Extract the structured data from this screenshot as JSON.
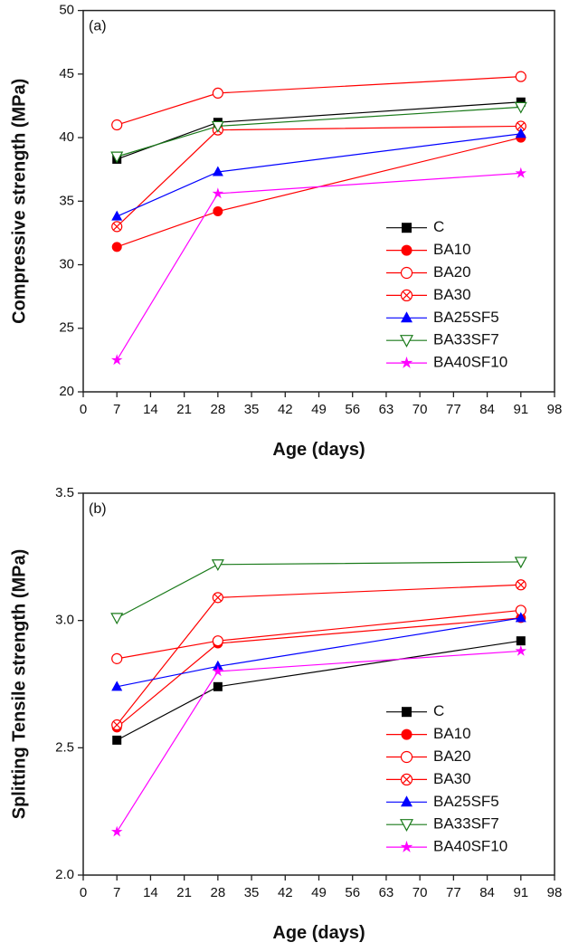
{
  "chart_data": [
    {
      "type": "line",
      "panel_label": "(a)",
      "xlabel": "Age (days)",
      "ylabel": "Compressive strength (MPa)",
      "xlim": [
        0,
        98
      ],
      "ylim": [
        20,
        50
      ],
      "xticks": [
        "0",
        "7",
        "14",
        "21",
        "28",
        "35",
        "42",
        "49",
        "56",
        "63",
        "70",
        "77",
        "84",
        "91",
        "98"
      ],
      "yticks": [
        "20",
        "25",
        "30",
        "35",
        "40",
        "45",
        "50"
      ],
      "grid": false,
      "legend_position": "bottom-right",
      "x": [
        7,
        28,
        91
      ],
      "series": [
        {
          "name": "C",
          "color": "#000000",
          "marker": "square-filled",
          "values": [
            38.3,
            41.2,
            42.8
          ]
        },
        {
          "name": "BA10",
          "color": "#ff0000",
          "marker": "circle-filled",
          "values": [
            31.4,
            34.2,
            40.0
          ]
        },
        {
          "name": "BA20",
          "color": "#ff0000",
          "marker": "circle-open",
          "values": [
            41.0,
            43.5,
            44.8
          ]
        },
        {
          "name": "BA30",
          "color": "#ff0000",
          "marker": "circle-x",
          "values": [
            33.0,
            40.6,
            40.9
          ]
        },
        {
          "name": "BA25SF5",
          "color": "#0000ff",
          "marker": "triangle-up-filled",
          "values": [
            33.8,
            37.3,
            40.3
          ]
        },
        {
          "name": "BA33SF7",
          "color": "#1a7a1a",
          "marker": "triangle-down-open",
          "values": [
            38.5,
            40.9,
            42.4
          ]
        },
        {
          "name": "BA40SF10",
          "color": "#ff00ff",
          "marker": "star-filled",
          "values": [
            22.5,
            35.6,
            37.2
          ]
        }
      ]
    },
    {
      "type": "line",
      "panel_label": "(b)",
      "xlabel": "Age (days)",
      "ylabel": "Splitting Tensile strength (MPa)",
      "xlim": [
        0,
        98
      ],
      "ylim": [
        2.0,
        3.5
      ],
      "xticks": [
        "0",
        "7",
        "14",
        "21",
        "28",
        "35",
        "42",
        "49",
        "56",
        "63",
        "70",
        "77",
        "84",
        "91",
        "98"
      ],
      "yticks": [
        "2.0",
        "2.5",
        "3.0",
        "3.5"
      ],
      "grid": false,
      "legend_position": "bottom-right",
      "x": [
        7,
        28,
        91
      ],
      "series": [
        {
          "name": "C",
          "color": "#000000",
          "marker": "square-filled",
          "values": [
            2.53,
            2.74,
            2.92
          ]
        },
        {
          "name": "BA10",
          "color": "#ff0000",
          "marker": "circle-filled",
          "values": [
            2.58,
            2.91,
            3.01
          ]
        },
        {
          "name": "BA20",
          "color": "#ff0000",
          "marker": "circle-open",
          "values": [
            2.85,
            2.92,
            3.04
          ]
        },
        {
          "name": "BA30",
          "color": "#ff0000",
          "marker": "circle-x",
          "values": [
            2.59,
            3.09,
            3.14
          ]
        },
        {
          "name": "BA25SF5",
          "color": "#0000ff",
          "marker": "triangle-up-filled",
          "values": [
            2.74,
            2.82,
            3.01
          ]
        },
        {
          "name": "BA33SF7",
          "color": "#1a7a1a",
          "marker": "triangle-down-open",
          "values": [
            3.01,
            3.22,
            3.23
          ]
        },
        {
          "name": "BA40SF10",
          "color": "#ff00ff",
          "marker": "star-filled",
          "values": [
            2.17,
            2.8,
            2.88
          ]
        }
      ]
    }
  ]
}
